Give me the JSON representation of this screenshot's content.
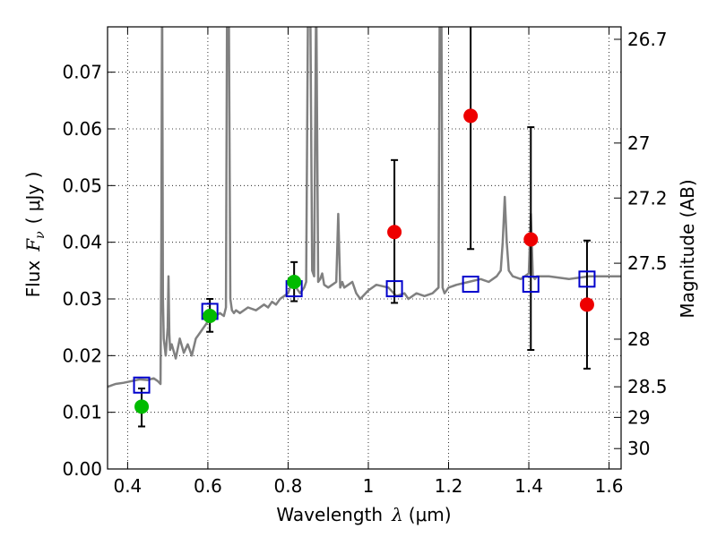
{
  "chart_data": {
    "type": "scatter",
    "xlabel": {
      "text": "Wavelength",
      "symbol": "λ",
      "unit": "(μm)"
    },
    "ylabel": {
      "text": "Flux",
      "symbol": "F",
      "subscript": "ν",
      "unit": "( μJy )"
    },
    "y2label": "Magnitude (AB)",
    "xlim": [
      0.35,
      1.63
    ],
    "ylim": [
      0.0,
      0.078
    ],
    "grid": true,
    "x_ticks": [
      0.4,
      0.6,
      0.8,
      1.0,
      1.2,
      1.4,
      1.6
    ],
    "x_tick_labels": [
      "0.4",
      "0.6",
      "0.8",
      "1",
      "1.2",
      "1.4",
      "1.6"
    ],
    "y_ticks": [
      0.0,
      0.01,
      0.02,
      0.03,
      0.04,
      0.05,
      0.06,
      0.07
    ],
    "y_tick_labels": [
      "0.00",
      "0.01",
      "0.02",
      "0.03",
      "0.04",
      "0.05",
      "0.06",
      "0.07"
    ],
    "mag_ticks": [
      {
        "label": "26.7",
        "flux": 0.0758
      },
      {
        "label": "27",
        "flux": 0.0575
      },
      {
        "label": "27.2",
        "flux": 0.0478
      },
      {
        "label": "27.5",
        "flux": 0.0363
      },
      {
        "label": "28",
        "flux": 0.0229
      },
      {
        "label": "28.5",
        "flux": 0.0145
      },
      {
        "label": "29",
        "flux": 0.0091
      },
      {
        "label": "30",
        "flux": 0.0036
      }
    ],
    "colors": {
      "spectrum": "#808080",
      "model_squares": "#0000cc",
      "green_points": "#00bb00",
      "red_points": "#ee0000",
      "errorbars": "#000000",
      "grid": "#000000"
    },
    "series": [
      {
        "kind": "line",
        "x": [
          0.35,
          0.37,
          0.39,
          0.41,
          0.43,
          0.45,
          0.465,
          0.475,
          0.482,
          0.484,
          0.486,
          0.488,
          0.49,
          0.495,
          0.5,
          0.502,
          0.504,
          0.506,
          0.51,
          0.52,
          0.53,
          0.54,
          0.55,
          0.56,
          0.57,
          0.58,
          0.59,
          0.6,
          0.61,
          0.62,
          0.63,
          0.64,
          0.645,
          0.648,
          0.652,
          0.656,
          0.66,
          0.665,
          0.67,
          0.68,
          0.7,
          0.72,
          0.74,
          0.75,
          0.76,
          0.77,
          0.78,
          0.79,
          0.8,
          0.81,
          0.82,
          0.83,
          0.84,
          0.845,
          0.85,
          0.855,
          0.86,
          0.865,
          0.87,
          0.875,
          0.88,
          0.885,
          0.89,
          0.9,
          0.91,
          0.92,
          0.925,
          0.93,
          0.935,
          0.94,
          0.95,
          0.96,
          0.97,
          0.98,
          1.0,
          1.02,
          1.05,
          1.07,
          1.09,
          1.1,
          1.12,
          1.14,
          1.16,
          1.175,
          1.178,
          1.182,
          1.185,
          1.19,
          1.2,
          1.22,
          1.25,
          1.28,
          1.3,
          1.32,
          1.33,
          1.335,
          1.34,
          1.345,
          1.35,
          1.36,
          1.38,
          1.4,
          1.405,
          1.41,
          1.415,
          1.42,
          1.45,
          1.5,
          1.55,
          1.6,
          1.63
        ],
        "y": [
          0.0145,
          0.015,
          0.0152,
          0.0155,
          0.0158,
          0.0157,
          0.016,
          0.0155,
          0.015,
          0.04,
          0.085,
          0.03,
          0.023,
          0.02,
          0.025,
          0.034,
          0.024,
          0.021,
          0.022,
          0.0195,
          0.023,
          0.0205,
          0.022,
          0.02,
          0.023,
          0.024,
          0.025,
          0.026,
          0.0265,
          0.027,
          0.0275,
          0.027,
          0.0285,
          0.085,
          0.085,
          0.03,
          0.028,
          0.0275,
          0.028,
          0.0275,
          0.0285,
          0.028,
          0.029,
          0.0285,
          0.0295,
          0.029,
          0.03,
          0.0305,
          0.031,
          0.033,
          0.032,
          0.031,
          0.032,
          0.033,
          0.085,
          0.085,
          0.035,
          0.034,
          0.085,
          0.033,
          0.0335,
          0.0345,
          0.0325,
          0.032,
          0.0325,
          0.033,
          0.045,
          0.032,
          0.033,
          0.032,
          0.0325,
          0.033,
          0.031,
          0.03,
          0.0315,
          0.0325,
          0.032,
          0.0305,
          0.031,
          0.03,
          0.031,
          0.0305,
          0.031,
          0.032,
          0.085,
          0.085,
          0.032,
          0.031,
          0.032,
          0.0325,
          0.033,
          0.0335,
          0.033,
          0.034,
          0.035,
          0.04,
          0.048,
          0.04,
          0.035,
          0.034,
          0.0335,
          0.0345,
          0.045,
          0.034,
          0.0335,
          0.034,
          0.034,
          0.0335,
          0.034,
          0.034,
          0.034
        ]
      },
      {
        "kind": "model_squares",
        "x": [
          0.435,
          0.605,
          0.815,
          1.065,
          1.255,
          1.405,
          1.545
        ],
        "y": [
          0.0148,
          0.0278,
          0.0318,
          0.0318,
          0.0326,
          0.0326,
          0.0335
        ]
      },
      {
        "kind": "green_points",
        "x": [
          0.435,
          0.605,
          0.815
        ],
        "y": [
          0.011,
          0.027,
          0.033
        ],
        "err_low": [
          0.0075,
          0.0242,
          0.0296
        ],
        "err_high": [
          0.0142,
          0.03,
          0.0365
        ]
      },
      {
        "kind": "red_points",
        "x": [
          1.065,
          1.255,
          1.405,
          1.545
        ],
        "y": [
          0.0418,
          0.0623,
          0.0405,
          0.029
        ],
        "err_low": [
          0.0293,
          0.0388,
          0.021,
          0.0177
        ],
        "err_high": [
          0.0545,
          0.079,
          0.0603,
          0.0403
        ]
      }
    ]
  }
}
